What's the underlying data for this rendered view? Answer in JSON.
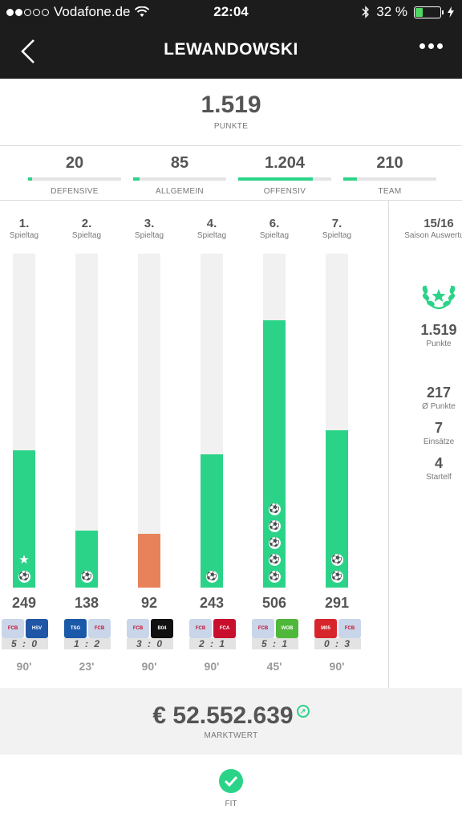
{
  "status_bar": {
    "carrier": "Vodafone.de",
    "time": "22:04",
    "battery": "32 %",
    "battery_level": 0.32,
    "signal_bars": 2
  },
  "header": {
    "title": "LEWANDOWSKI"
  },
  "total": {
    "value": "1.519",
    "label": "PUNKTE"
  },
  "categories": [
    {
      "value": "20",
      "label": "DEFENSIVE",
      "fill": 0.04
    },
    {
      "value": "85",
      "label": "ALLGEMEIN",
      "fill": 0.07
    },
    {
      "value": "1.204",
      "label": "OFFENSIV",
      "fill": 0.8
    },
    {
      "value": "210",
      "label": "TEAM",
      "fill": 0.15
    }
  ],
  "matches": [
    {
      "matchday": "1.",
      "label": "Spieltag",
      "points": "249",
      "score": "5 : 0",
      "minutes": "90'",
      "bar_level": 0.41,
      "bar_color": "#2bd388",
      "goals": 1,
      "star": true,
      "crests": [
        {
          "color": "#c9d6ea",
          "text": "FCB"
        },
        {
          "color": "#1f56a6",
          "text": "HSV"
        }
      ]
    },
    {
      "matchday": "2.",
      "label": "Spieltag",
      "points": "138",
      "score": "1 : 2",
      "minutes": "23'",
      "bar_level": 0.17,
      "bar_color": "#2bd388",
      "goals": 1,
      "star": false,
      "crests": [
        {
          "color": "#1a5aa8",
          "text": "TSG"
        },
        {
          "color": "#c9d6ea",
          "text": "FCB"
        }
      ]
    },
    {
      "matchday": "3.",
      "label": "Spieltag",
      "points": "92",
      "score": "3 : 0",
      "minutes": "90'",
      "bar_level": 0.16,
      "bar_color": "#e8825a",
      "goals": 0,
      "star": false,
      "crests": [
        {
          "color": "#c9d6ea",
          "text": "FCB"
        },
        {
          "color": "#111111",
          "text": "B04"
        }
      ]
    },
    {
      "matchday": "4.",
      "label": "Spieltag",
      "points": "243",
      "score": "2 : 1",
      "minutes": "90'",
      "bar_level": 0.4,
      "bar_color": "#2bd388",
      "goals": 1,
      "star": false,
      "crests": [
        {
          "color": "#c9d6ea",
          "text": "FCB"
        },
        {
          "color": "#c8102e",
          "text": "FCA"
        }
      ]
    },
    {
      "matchday": "6.",
      "label": "Spieltag",
      "points": "506",
      "score": "5 : 1",
      "minutes": "45'",
      "bar_level": 0.8,
      "bar_color": "#2bd388",
      "goals": 5,
      "star": false,
      "crests": [
        {
          "color": "#c9d6ea",
          "text": "FCB"
        },
        {
          "color": "#4fb83a",
          "text": "WOB"
        }
      ]
    },
    {
      "matchday": "7.",
      "label": "Spieltag",
      "points": "291",
      "score": "0 : 3",
      "minutes": "90'",
      "bar_level": 0.47,
      "bar_color": "#2bd388",
      "goals": 2,
      "star": false,
      "crests": [
        {
          "color": "#d7252c",
          "text": "M05"
        },
        {
          "color": "#c9d6ea",
          "text": "FCB"
        }
      ]
    }
  ],
  "season": {
    "title": "15/16",
    "subtitle": "Saison Auswertung",
    "points_value": "1.519",
    "points_label": "Punkte",
    "avg_value": "217",
    "avg_label": "Ø Punkte",
    "apps_value": "7",
    "apps_label": "Einsätze",
    "starts_value": "4",
    "starts_label": "Startelf"
  },
  "market": {
    "value": "€ 52.552.639",
    "label": "MARKTWERT"
  },
  "fit": {
    "label": "FIT"
  },
  "colors": {
    "accent": "#2bd388",
    "warning": "#e8825a",
    "header_bg": "#1c1c1c"
  }
}
